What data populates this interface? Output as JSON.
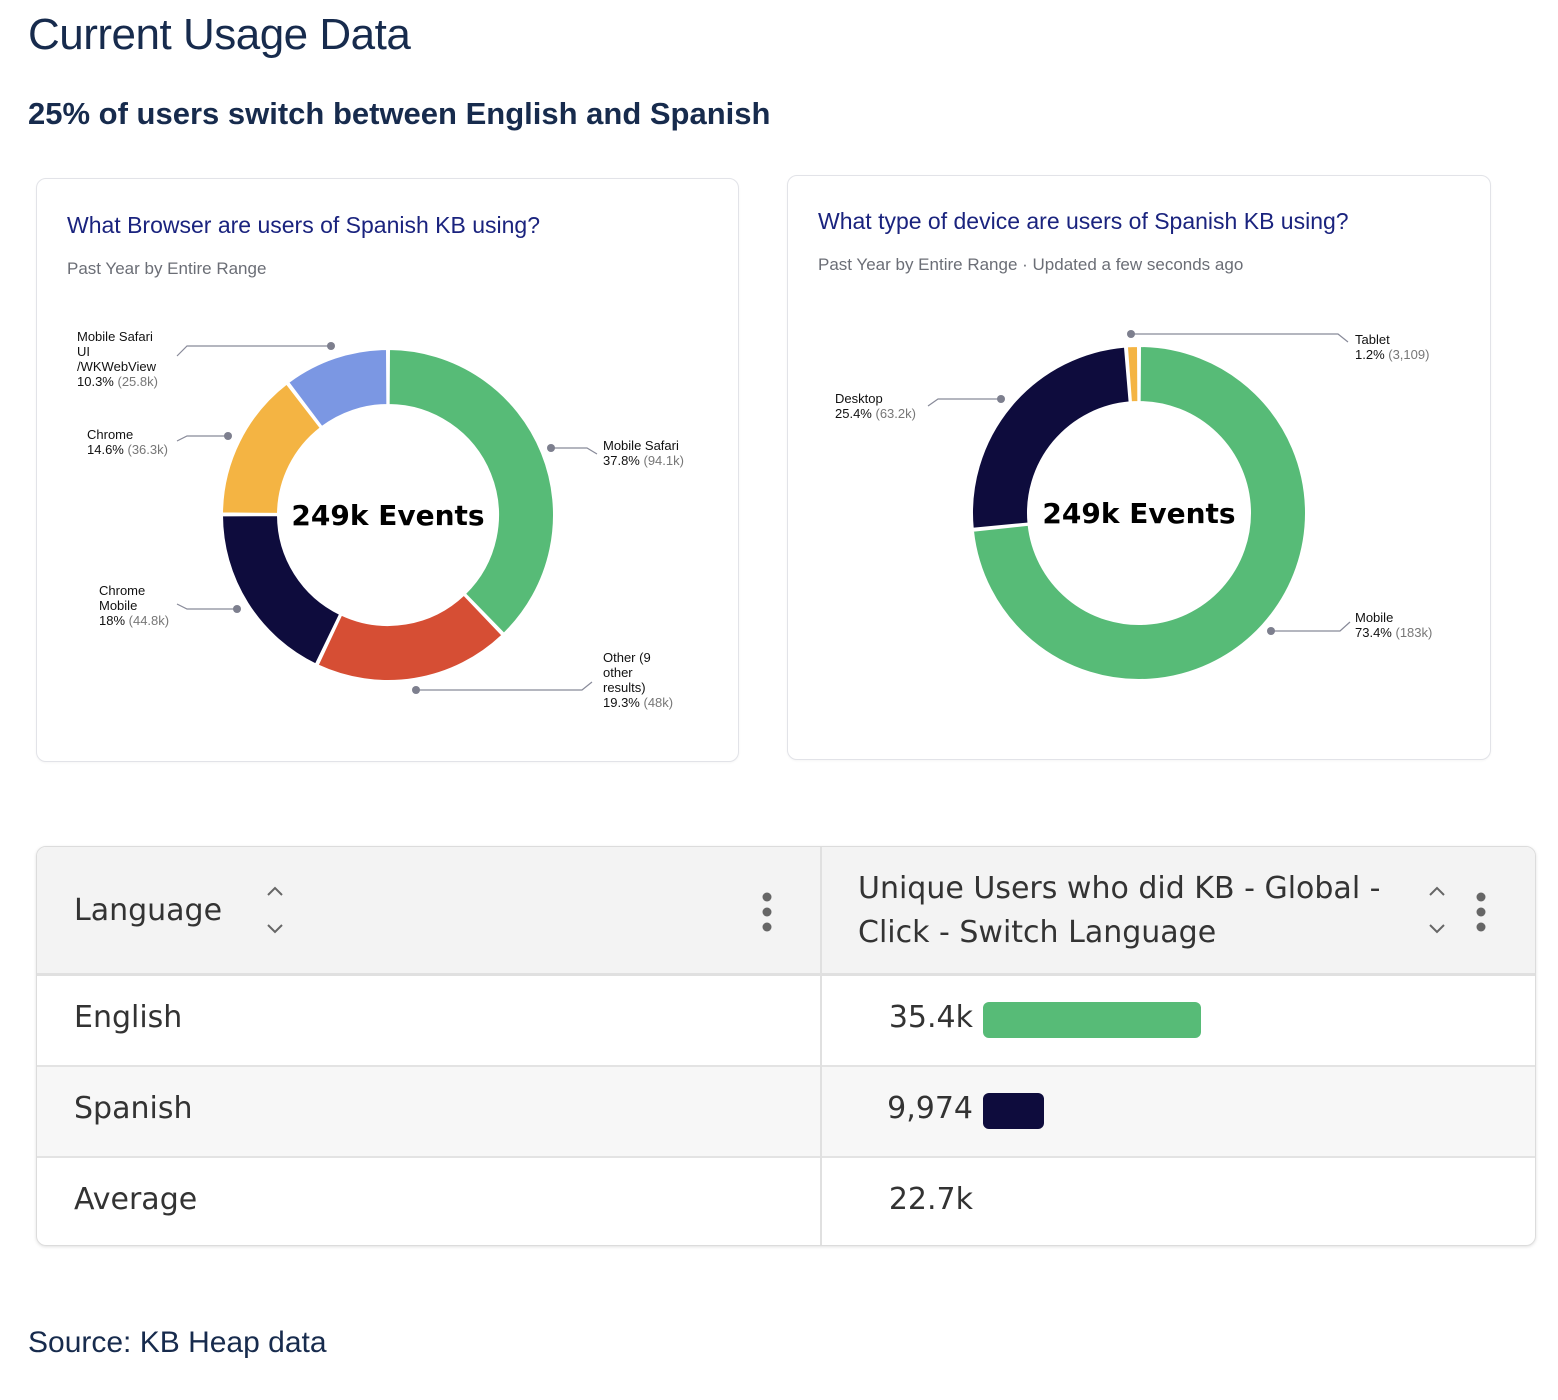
{
  "page": {
    "title": "Current Usage Data",
    "subtitle": "25% of users switch between English and Spanish",
    "source": "Source: KB Heap data"
  },
  "chart_data": [
    {
      "type": "pie",
      "title": "What Browser are users of Spanish KB using?",
      "subtitle": "Past Year by Entire Range",
      "center_label": "249k Events",
      "slices": [
        {
          "label": "Mobile Safari",
          "percent": 37.8,
          "count_label": "94.1k",
          "value": 94100,
          "color": "#57bb77"
        },
        {
          "label": "Other (9 other results)",
          "label_lines": [
            "Other (9",
            "other",
            "results)"
          ],
          "percent": 19.3,
          "count_label": "48k",
          "value": 48000,
          "color": "#d64e34"
        },
        {
          "label": "Chrome Mobile",
          "label_lines": [
            "Chrome",
            "Mobile"
          ],
          "percent": 18,
          "count_label": "44.8k",
          "value": 44800,
          "color": "#0e0c3d"
        },
        {
          "label": "Chrome",
          "percent": 14.6,
          "count_label": "36.3k",
          "value": 36300,
          "color": "#f4b443"
        },
        {
          "label": "Mobile Safari UI /WKWebView",
          "label_lines": [
            "Mobile Safari",
            "UI",
            "/WKWebView"
          ],
          "percent": 10.3,
          "count_label": "25.8k",
          "value": 25800,
          "color": "#7b97e3"
        }
      ]
    },
    {
      "type": "pie",
      "title": "What type of device are users of Spanish KB using?",
      "subtitle": "Past Year by Entire Range · Updated a few seconds ago",
      "center_label": "249k Events",
      "slices": [
        {
          "label": "Mobile",
          "percent": 73.4,
          "count_label": "183k",
          "value": 183000,
          "color": "#57bb77"
        },
        {
          "label": "Desktop",
          "percent": 25.4,
          "count_label": "63.2k",
          "value": 63200,
          "color": "#0e0c3d"
        },
        {
          "label": "Tablet",
          "percent": 1.2,
          "count_label": "3,109",
          "value": 3109,
          "color": "#f4b443"
        }
      ]
    },
    {
      "type": "table",
      "columns": [
        "Language",
        "Unique Users who did KB - Global - Click - Switch Language"
      ],
      "rows": [
        {
          "language": "English",
          "value_label": "35.4k",
          "value": 35400,
          "bar_color": "#57bb77"
        },
        {
          "language": "Spanish",
          "value_label": "9,974",
          "value": 9974,
          "bar_color": "#0e0c3d"
        },
        {
          "language": "Average",
          "value_label": "22.7k",
          "value": 22700
        }
      ]
    }
  ]
}
